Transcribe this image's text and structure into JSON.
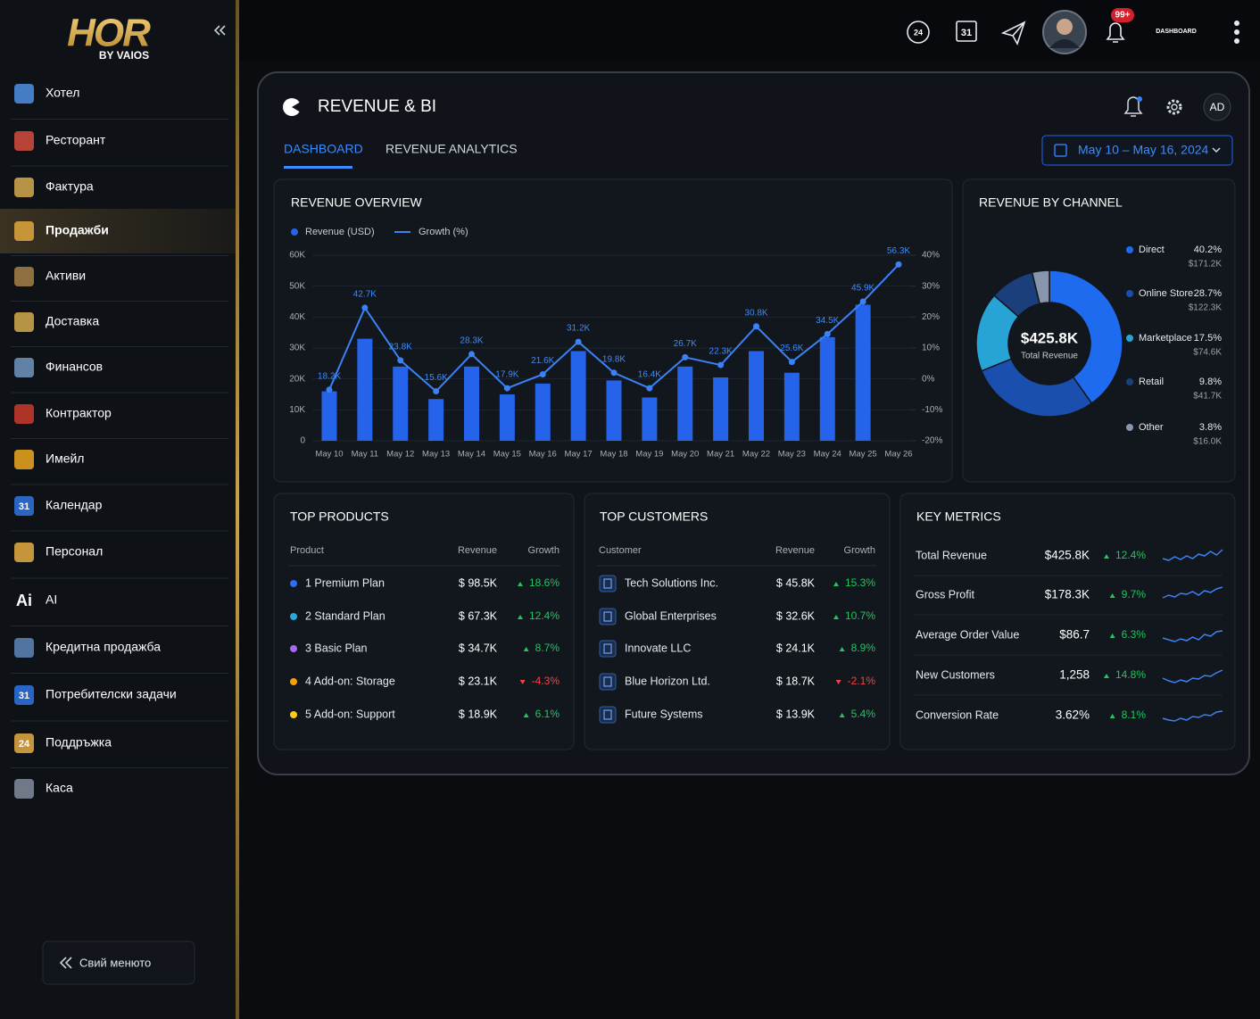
{
  "logo": {
    "brand": "HOR",
    "tagline": "BY VAIOS"
  },
  "sidebar": {
    "items": [
      {
        "label": "Хотел"
      },
      {
        "label": "Ресторант"
      },
      {
        "label": "Фактура"
      },
      {
        "label": "Продажби",
        "active": true
      },
      {
        "label": "Активи"
      },
      {
        "label": "Доставка"
      },
      {
        "label": "Финансов"
      },
      {
        "label": "Контрактор"
      },
      {
        "label": "Имейл"
      },
      {
        "label": "Календар",
        "badge": "31"
      },
      {
        "label": "Персонал"
      },
      {
        "label": "AI",
        "badge": "Ai"
      },
      {
        "label": "Кредитна продажба"
      },
      {
        "label": "Потребителски задачи",
        "badge": "31"
      },
      {
        "label": "Поддръжка",
        "badge": "24"
      },
      {
        "label": "Каса"
      }
    ],
    "collapse": "Свий менюто"
  },
  "topbar": {
    "support_icon": "24",
    "calendar_icon": "31",
    "notification_badge": "99+",
    "user_label": "DASHBOARD"
  },
  "panel": {
    "title": "REVENUE & BI",
    "avatar": "AD",
    "tabs": [
      {
        "label": "DASHBOARD",
        "active": true
      },
      {
        "label": "REVENUE ANALYTICS"
      }
    ],
    "date_range": "May 10 – May 16, 2024"
  },
  "revenue_overview": {
    "type": "bar",
    "title": "REVENUE OVERVIEW",
    "categories": [
      "May 10",
      "May 11",
      "May 12",
      "May 13",
      "May 14",
      "May 15",
      "May 16",
      "May 17",
      "May 18",
      "May 19",
      "May 20",
      "May 21",
      "May 22",
      "May 23",
      "May 24",
      "May 25",
      "May 26"
    ],
    "series": [
      {
        "name": "Revenue (USD)",
        "type": "bar",
        "color": "#2563eb",
        "values": [
          16000,
          33000,
          24000,
          13500,
          24000,
          15000,
          18500,
          29000,
          19500,
          14000,
          24000,
          20500,
          29000,
          22000,
          33500,
          44000,
          null
        ]
      },
      {
        "name": "Growth (%)",
        "type": "line",
        "axis": "y2",
        "color": "#3b82f6",
        "values": [
          -3.5,
          23,
          6,
          -4,
          8,
          -3,
          1.5,
          12,
          2,
          -3,
          7,
          4.5,
          17,
          5.5,
          14.5,
          25,
          37
        ]
      }
    ],
    "point_labels": [
      "18.2K",
      "42.7K",
      "23.8K",
      "15.6K",
      "28.3K",
      "17.9K",
      "21.6K",
      "31.2K",
      "19.8K",
      "16.4K",
      "26.7K",
      "22.3K",
      "30.8K",
      "25.6K",
      "34.5K",
      "45.9K",
      "56.3K"
    ],
    "ylim": [
      0,
      60000
    ],
    "yticks": [
      0,
      {
        "value": 10000,
        "label": "10K"
      },
      {
        "value": 20000,
        "label": "20K"
      },
      {
        "value": 30000,
        "label": "30K"
      },
      {
        "value": 40000,
        "label": "40K"
      },
      {
        "value": 50000,
        "label": "50K"
      },
      {
        "value": 60000,
        "label": "60K"
      }
    ],
    "y2lim": [
      -20,
      40
    ],
    "y2ticks": [
      {
        "value": -20,
        "label": "-20%"
      },
      {
        "value": -10,
        "label": "-10%"
      },
      {
        "value": 0,
        "label": "0%"
      },
      {
        "value": 10,
        "label": "10%"
      },
      {
        "value": 20,
        "label": "20%"
      },
      {
        "value": 30,
        "label": "30%"
      },
      {
        "value": 40,
        "label": "40%"
      }
    ],
    "grid": true,
    "legend": "top-left"
  },
  "revenue_by_channel": {
    "type": "pie",
    "donut": true,
    "title": "REVENUE BY CHANNEL",
    "center_value": "$425.8K",
    "center_label": "Total Revenue",
    "categories": [
      "Direct",
      "Online Store",
      "Marketplace",
      "Retail",
      "Other"
    ],
    "values": [
      40.2,
      28.7,
      17.5,
      9.8,
      3.8
    ],
    "value_labels": [
      "40.2%",
      "28.7%",
      "17.5%",
      "9.8%",
      "3.8%"
    ],
    "amounts": [
      "$171.2K",
      "$122.3K",
      "$74.6K",
      "$41.7K",
      "$16.0K"
    ],
    "colors": [
      "#1f6bf0",
      "#1a4faf",
      "#27a3d6",
      "#1b3f7a",
      "#8796aa"
    ],
    "legend": "right"
  },
  "top_products": {
    "title": "TOP PRODUCTS",
    "columns": [
      "Product",
      "Revenue",
      "Growth"
    ],
    "rows": [
      {
        "name": "1 Premium Plan",
        "revenue": "$ 98.5K",
        "growth": "18.6%",
        "color": "#2f6df6"
      },
      {
        "name": "2 Standard Plan",
        "revenue": "$ 67.3K",
        "growth": "12.4%",
        "color": "#27a8d8"
      },
      {
        "name": "3 Basic Plan",
        "revenue": "$ 34.7K",
        "growth": "8.7%",
        "color": "#a26bf0"
      },
      {
        "name": "4 Add-on: Storage",
        "revenue": "$ 23.1K",
        "growth": "-4.3%",
        "color": "#f59e0b"
      },
      {
        "name": "5 Add-on: Support",
        "revenue": "$ 18.9K",
        "growth": "6.1%",
        "color": "#facc15"
      }
    ]
  },
  "top_customers": {
    "title": "TOP CUSTOMERS",
    "columns": [
      "Customer",
      "Revenue",
      "Growth"
    ],
    "rows": [
      {
        "name": "Tech Solutions Inc.",
        "revenue": "$ 45.8K",
        "growth": "15.3%"
      },
      {
        "name": "Global Enterprises",
        "revenue": "$ 32.6K",
        "growth": "10.7%"
      },
      {
        "name": "Innovate LLC",
        "revenue": "$ 24.1K",
        "growth": "8.9%"
      },
      {
        "name": "Blue Horizon Ltd.",
        "revenue": "$ 18.7K",
        "growth": "-2.1%"
      },
      {
        "name": "Future Systems",
        "revenue": "$ 13.9K",
        "growth": "5.4%"
      }
    ]
  },
  "key_metrics": {
    "title": "KEY METRICS",
    "rows": [
      {
        "name": "Total Revenue",
        "value": "$425.8K",
        "growth": "12.4%"
      },
      {
        "name": "Gross Profit",
        "value": "$178.3K",
        "growth": "9.7%"
      },
      {
        "name": "Average Order Value",
        "value": "$86.7",
        "growth": "6.3%"
      },
      {
        "name": "New Customers",
        "value": "1,258",
        "growth": "14.8%"
      },
      {
        "name": "Conversion Rate",
        "value": "3.62%",
        "growth": "8.1%"
      }
    ]
  }
}
